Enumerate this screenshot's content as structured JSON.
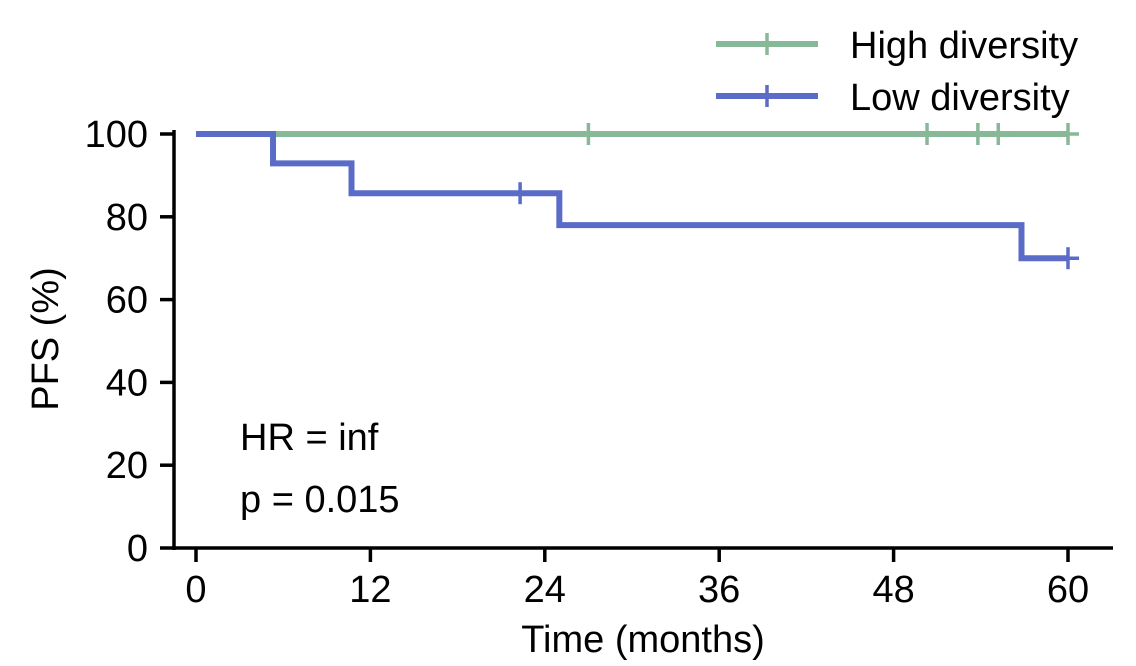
{
  "chart_data": {
    "type": "line",
    "subtype": "kaplan-meier step",
    "xlabel": "Time (months)",
    "ylabel": "PFS (%)",
    "xlim": [
      0,
      60
    ],
    "ylim": [
      0,
      100
    ],
    "x_ticks": [
      0,
      12,
      24,
      36,
      48,
      60
    ],
    "y_ticks": [
      0,
      20,
      40,
      60,
      80,
      100
    ],
    "grid": false,
    "legend_position": "top-right",
    "series": [
      {
        "name": "High diversity",
        "color": "#87b898",
        "steps": [
          [
            0,
            100
          ],
          [
            60,
            100
          ]
        ],
        "censor_x": [
          27,
          50.3,
          53.8,
          55.2,
          60
        ]
      },
      {
        "name": "Low diversity",
        "color": "#5b6cc8",
        "steps": [
          [
            0,
            100
          ],
          [
            5.3,
            92.9
          ],
          [
            10.7,
            85.7
          ],
          [
            25,
            78
          ],
          [
            56.8,
            70
          ],
          [
            60,
            70
          ]
        ],
        "censor_x": [
          22.3,
          60
        ]
      }
    ],
    "annotations": [
      "HR = inf",
      "p = 0.015"
    ]
  }
}
